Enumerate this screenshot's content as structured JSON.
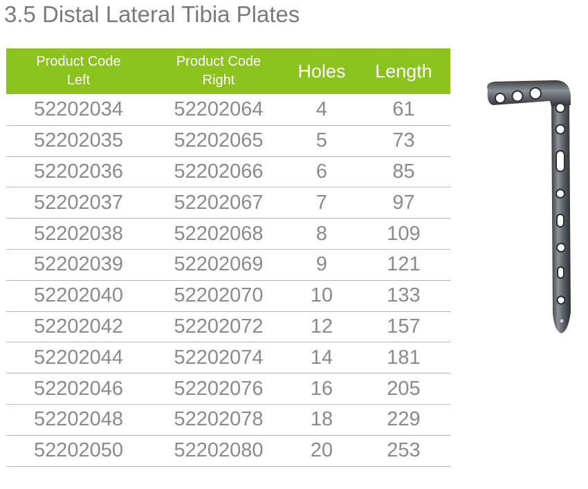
{
  "title": "3.5 Distal Lateral Tibia Plates",
  "table": {
    "headers": {
      "left_line1": "Product Code",
      "left_line2": "Left",
      "right_line1": "Product Code",
      "right_line2": "Right",
      "holes": "Holes",
      "length": "Length"
    },
    "rows": [
      {
        "left": "52202034",
        "right": "52202064",
        "holes": "4",
        "length": "61"
      },
      {
        "left": "52202035",
        "right": "52202065",
        "holes": "5",
        "length": "73"
      },
      {
        "left": "52202036",
        "right": "52202066",
        "holes": "6",
        "length": "85"
      },
      {
        "left": "52202037",
        "right": "52202067",
        "holes": "7",
        "length": "97"
      },
      {
        "left": "52202038",
        "right": "52202068",
        "holes": "8",
        "length": "109"
      },
      {
        "left": "52202039",
        "right": "52202069",
        "holes": "9",
        "length": "121"
      },
      {
        "left": "52202040",
        "right": "52202070",
        "holes": "10",
        "length": "133"
      },
      {
        "left": "52202042",
        "right": "52202072",
        "holes": "12",
        "length": "157"
      },
      {
        "left": "52202044",
        "right": "52202074",
        "holes": "14",
        "length": "181"
      },
      {
        "left": "52202046",
        "right": "52202076",
        "holes": "16",
        "length": "205"
      },
      {
        "left": "52202048",
        "right": "52202078",
        "holes": "18",
        "length": "229"
      },
      {
        "left": "52202050",
        "right": "52202080",
        "holes": "20",
        "length": "253"
      }
    ]
  },
  "colors": {
    "header_bg": "#8cc21d",
    "header_text": "#ffffff",
    "body_text": "#8a8a8a",
    "title_text": "#7a7a7a",
    "row_divider": "#b9b9b9"
  },
  "image": {
    "icon": "bone-plate-image"
  }
}
